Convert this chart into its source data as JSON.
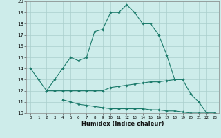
{
  "xlabel": "Humidex (Indice chaleur)",
  "x": [
    0,
    1,
    2,
    3,
    4,
    5,
    6,
    7,
    8,
    9,
    10,
    11,
    12,
    13,
    14,
    15,
    16,
    17,
    18,
    19,
    20,
    21,
    22,
    23
  ],
  "line1": [
    14,
    13,
    12,
    13,
    14,
    15,
    14.7,
    15,
    17.3,
    17.5,
    19,
    19,
    19.7,
    19,
    18,
    18,
    17,
    15.2,
    13,
    null,
    null,
    null,
    null,
    null
  ],
  "line2": [
    null,
    null,
    12,
    12,
    12,
    12,
    12,
    12,
    12,
    12,
    12.3,
    12.4,
    12.5,
    12.6,
    12.7,
    12.8,
    12.8,
    12.9,
    13,
    13,
    11.7,
    11,
    10,
    10
  ],
  "line3": [
    null,
    null,
    null,
    null,
    11.2,
    11,
    10.8,
    10.7,
    10.6,
    10.5,
    10.4,
    10.4,
    10.4,
    10.4,
    10.4,
    10.3,
    10.3,
    10.2,
    10.2,
    10.1,
    10,
    10,
    10,
    10
  ],
  "line_color": "#1a7a6a",
  "bg_color": "#cdecea",
  "grid_color": "#aacfcc",
  "ylim": [
    10,
    20
  ],
  "xlim": [
    -0.5,
    23.5
  ],
  "yticks": [
    10,
    11,
    12,
    13,
    14,
    15,
    16,
    17,
    18,
    19,
    20
  ],
  "xticks": [
    0,
    1,
    2,
    3,
    4,
    5,
    6,
    7,
    8,
    9,
    10,
    11,
    12,
    13,
    14,
    15,
    16,
    17,
    18,
    19,
    20,
    21,
    22,
    23
  ]
}
